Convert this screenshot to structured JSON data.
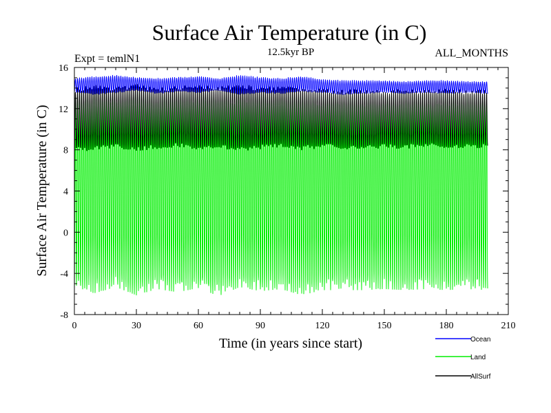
{
  "chart_data": {
    "type": "line",
    "title": "Surface Air Temperature (in C)",
    "subtitle": "12.5kyr BP",
    "experiment_label": "Expt = temlN1",
    "months_label": "ALL_MONTHS",
    "xlabel": "Time (in years since start)",
    "ylabel": "Surface Air Temperature (in C)",
    "xlim": [
      0,
      210
    ],
    "ylim": [
      -8,
      16
    ],
    "xticks": [
      0,
      30,
      60,
      90,
      120,
      150,
      180,
      210
    ],
    "yticks": [
      -8,
      -4,
      0,
      4,
      8,
      12,
      16
    ],
    "x_start": 0,
    "x_end": 200,
    "samples_per_year": 12,
    "series": [
      {
        "name": "Ocean",
        "color": "#0000ff",
        "seasonal_min": [
          13.6,
          13.4,
          13.6,
          13.8,
          13.5,
          13.7,
          13.6,
          13.8,
          13.4,
          13.6,
          13.5,
          13.7,
          13.6,
          13.4,
          13.5,
          13.6,
          13.5,
          13.6,
          13.5,
          13.6,
          13.5
        ],
        "seasonal_max": [
          14.9,
          15.1,
          15.2,
          15.0,
          14.9,
          15.0,
          15.1,
          14.9,
          15.2,
          15.0,
          14.9,
          15.1,
          14.8,
          14.7,
          14.7,
          14.7,
          14.6,
          14.7,
          14.7,
          14.6,
          14.6
        ]
      },
      {
        "name": "Land",
        "color": "#00ee00",
        "seasonal_min": [
          -5.3,
          -5.6,
          -5.0,
          -5.8,
          -5.2,
          -5.5,
          -5.1,
          -5.9,
          -5.0,
          -5.4,
          -5.2,
          -5.8,
          -5.3,
          -5.3,
          -5.3,
          -5.2,
          -5.3,
          -5.2,
          -5.3,
          -5.2,
          -5.3
        ],
        "seasonal_max": [
          13.2,
          13.5,
          13.0,
          13.6,
          13.1,
          13.4,
          13.2,
          13.5,
          13.0,
          13.3,
          13.1,
          13.2,
          12.9,
          13.0,
          12.9,
          13.0,
          12.9,
          13.0,
          12.9,
          13.0,
          12.9
        ]
      },
      {
        "name": "AllSurf",
        "color": "#000000",
        "seasonal_min": [
          8.0,
          8.2,
          8.4,
          8.1,
          8.3,
          8.5,
          8.2,
          8.4,
          8.1,
          8.3,
          8.5,
          8.2,
          8.4,
          8.3,
          8.2,
          8.4,
          8.3,
          8.5,
          8.3,
          8.4,
          8.4
        ],
        "seasonal_max": [
          13.8,
          14.1,
          13.9,
          14.2,
          13.8,
          14.0,
          14.1,
          13.9,
          14.2,
          13.9,
          14.0,
          13.8,
          13.7,
          13.6,
          13.7,
          13.6,
          13.7,
          13.6,
          13.7,
          13.6,
          13.6
        ]
      }
    ],
    "legend_position": "bottom-right"
  }
}
